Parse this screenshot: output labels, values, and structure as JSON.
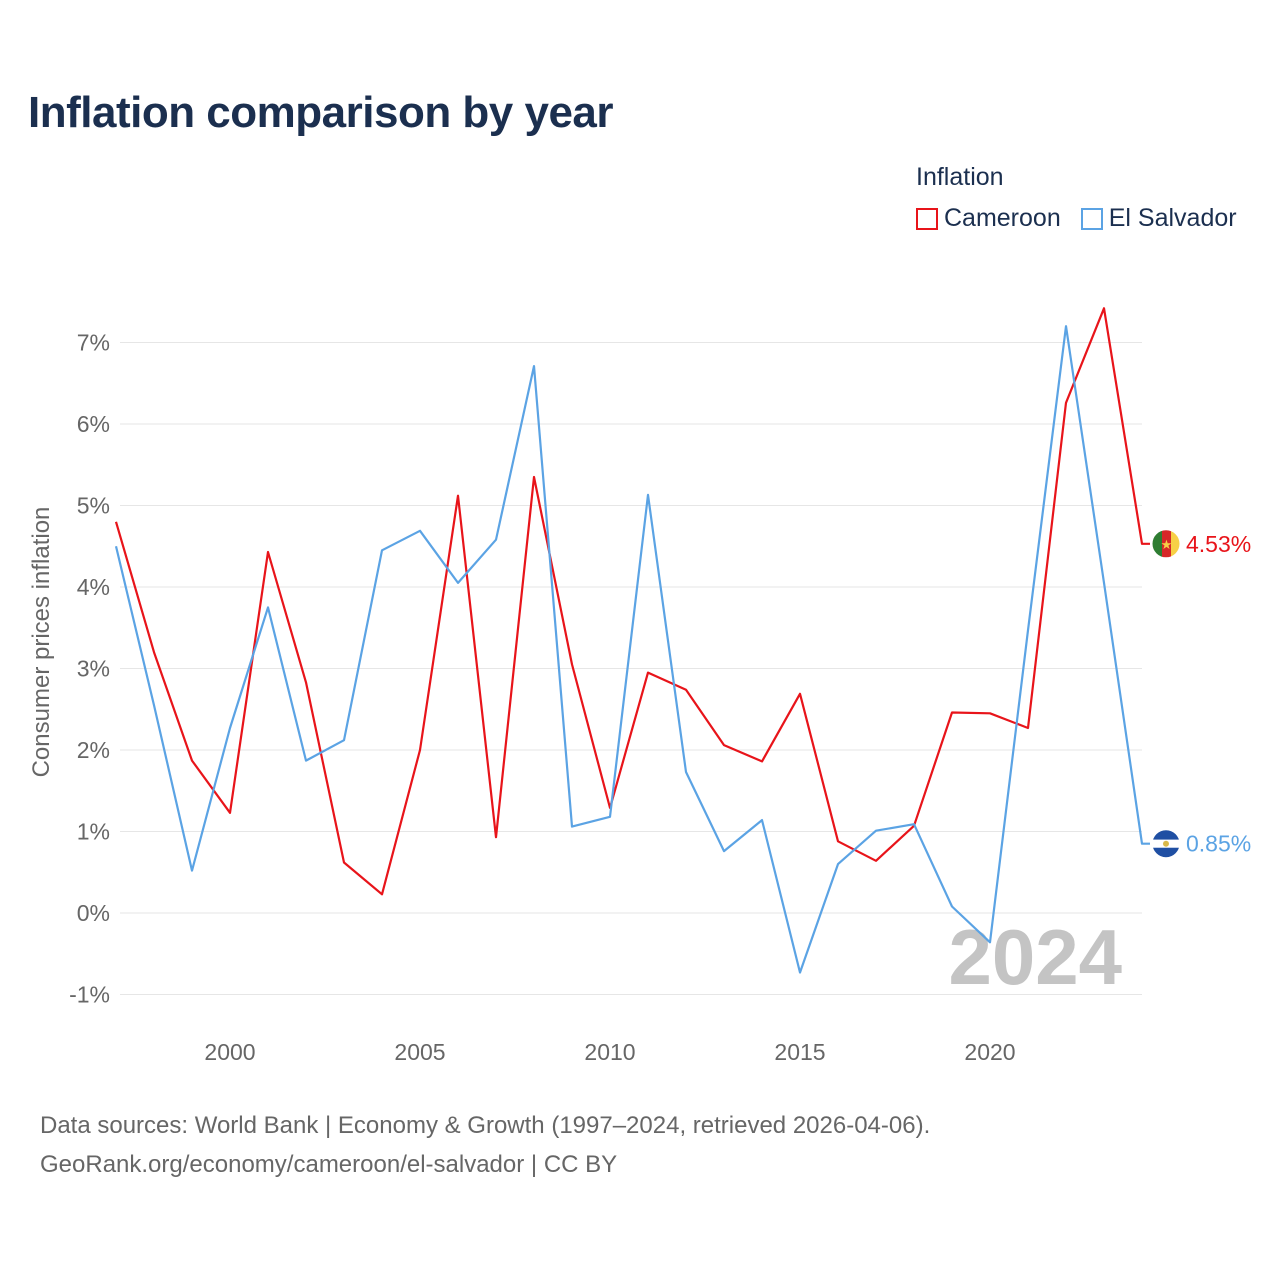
{
  "title": "Inflation comparison by year",
  "legend": {
    "title": "Inflation",
    "items": [
      {
        "label": "Cameroon",
        "color": "#e8141a"
      },
      {
        "label": "El Salvador",
        "color": "#5ba3e4"
      }
    ]
  },
  "footer": {
    "line1": "Data sources: World Bank | Economy & Growth (1997–2024, retrieved 2026-04-06).",
    "line2": "GeoRank.org/economy/cameroon/el-salvador | CC BY"
  },
  "chart_data": {
    "type": "line",
    "ylabel": "Consumer prices inflation",
    "xlabel": "",
    "ylim": [
      -1.2,
      7.6
    ],
    "xlim": [
      1997,
      2024
    ],
    "x_ticks": [
      2000,
      2005,
      2010,
      2015,
      2020
    ],
    "y_ticks": [
      -1,
      0,
      1,
      2,
      3,
      4,
      5,
      6,
      7
    ],
    "y_tick_labels": [
      "-1%",
      "0%",
      "1%",
      "2%",
      "3%",
      "4%",
      "5%",
      "6%",
      "7%"
    ],
    "grid": true,
    "watermark_year": "2024",
    "x": [
      1997,
      1998,
      1999,
      2000,
      2001,
      2002,
      2003,
      2004,
      2005,
      2006,
      2007,
      2008,
      2009,
      2010,
      2011,
      2012,
      2013,
      2014,
      2015,
      2016,
      2017,
      2018,
      2019,
      2020,
      2021,
      2022,
      2023,
      2024
    ],
    "series": [
      {
        "name": "Cameroon",
        "color": "#e8141a",
        "end_label": "4.53%",
        "values": [
          4.8,
          3.2,
          1.87,
          1.23,
          4.43,
          2.83,
          0.62,
          0.23,
          2.0,
          5.12,
          0.93,
          5.35,
          3.05,
          1.29,
          2.95,
          2.74,
          2.06,
          1.86,
          2.69,
          0.88,
          0.64,
          1.07,
          2.46,
          2.45,
          2.27,
          6.26,
          7.42,
          4.53
        ]
      },
      {
        "name": "El Salvador",
        "color": "#5ba3e4",
        "end_label": "0.85%",
        "values": [
          4.5,
          2.55,
          0.52,
          2.27,
          3.75,
          1.87,
          2.12,
          4.45,
          4.69,
          4.05,
          4.58,
          6.71,
          1.06,
          1.18,
          5.13,
          1.73,
          0.76,
          1.14,
          -0.73,
          0.6,
          1.01,
          1.09,
          0.08,
          -0.36,
          3.47,
          7.2,
          4.05,
          0.85
        ]
      }
    ]
  }
}
